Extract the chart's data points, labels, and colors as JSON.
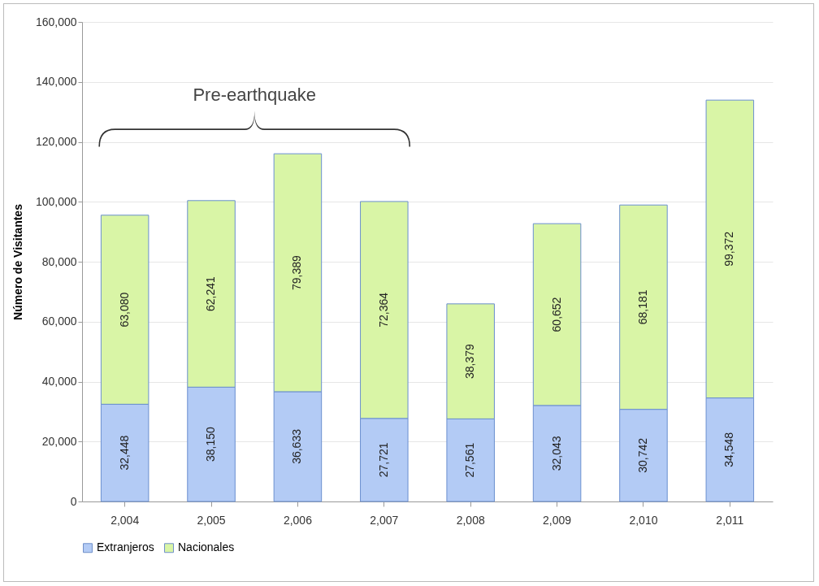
{
  "chart_data": {
    "type": "bar",
    "stacked": true,
    "ylabel": "Número de Visitantes",
    "categories": [
      "2,004",
      "2,005",
      "2,006",
      "2,007",
      "2,008",
      "2,009",
      "2,010",
      "2,011"
    ],
    "series": [
      {
        "name": "Extranjeros",
        "color": "#b3cbf5",
        "values": [
          32448,
          38150,
          36633,
          27721,
          27561,
          32043,
          30742,
          34548
        ],
        "value_labels": [
          "32,448",
          "38,150",
          "36,633",
          "27,721",
          "27,561",
          "32,043",
          "30,742",
          "34,548"
        ]
      },
      {
        "name": "Nacionales",
        "color": "#d9f5a6",
        "values": [
          63080,
          62241,
          79389,
          72364,
          38379,
          60652,
          68181,
          99372
        ],
        "value_labels": [
          "63,080",
          "62,241",
          "79,389",
          "72,364",
          "38,379",
          "60,652",
          "68,181",
          "99,372"
        ]
      }
    ],
    "ylim": [
      0,
      160000
    ],
    "yticks": [
      {
        "value": 0,
        "label": "0"
      },
      {
        "value": 20000,
        "label": "20,000"
      },
      {
        "value": 40000,
        "label": "40,000"
      },
      {
        "value": 60000,
        "label": "60,000"
      },
      {
        "value": 80000,
        "label": "80,000"
      },
      {
        "value": 100000,
        "label": "100,000"
      },
      {
        "value": 120000,
        "label": "120,000"
      },
      {
        "value": 140000,
        "label": "140,000"
      },
      {
        "value": 160000,
        "label": "160,000"
      }
    ],
    "grid": "y",
    "legend": "bottom",
    "annotations": [
      "Pre-earthquake"
    ]
  }
}
